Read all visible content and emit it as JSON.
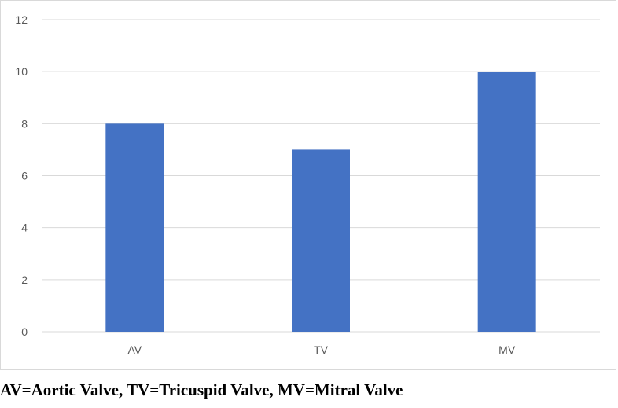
{
  "chart_data": {
    "type": "bar",
    "categories": [
      "AV",
      "TV",
      "MV"
    ],
    "values": [
      8,
      7,
      10
    ],
    "ylim": [
      0,
      12
    ],
    "yticks": [
      "0",
      "2",
      "4",
      "6",
      "8",
      "10",
      "12"
    ],
    "grid": true,
    "bar_color": "#4472c4",
    "grid_color": "#d9d9d9"
  },
  "caption": "AV=Aortic Valve, TV=Tricuspid Valve, MV=Mitral Valve"
}
